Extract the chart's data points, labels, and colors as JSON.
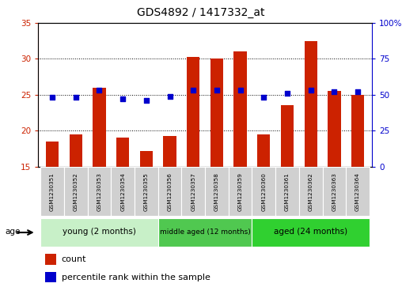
{
  "title": "GDS4892 / 1417332_at",
  "samples": [
    "GSM1230351",
    "GSM1230352",
    "GSM1230353",
    "GSM1230354",
    "GSM1230355",
    "GSM1230356",
    "GSM1230357",
    "GSM1230358",
    "GSM1230359",
    "GSM1230360",
    "GSM1230361",
    "GSM1230362",
    "GSM1230363",
    "GSM1230364"
  ],
  "count_values": [
    18.5,
    19.5,
    26.0,
    19.0,
    17.2,
    19.3,
    30.3,
    30.0,
    31.0,
    19.5,
    23.5,
    32.5,
    25.5,
    25.0
  ],
  "percentile_values": [
    48,
    48,
    53,
    47,
    46,
    49,
    53,
    53,
    53,
    48,
    51,
    53,
    52,
    52
  ],
  "count_base": 15,
  "ylim_left": [
    15,
    35
  ],
  "ylim_right": [
    0,
    100
  ],
  "yticks_left": [
    15,
    20,
    25,
    30,
    35
  ],
  "yticks_right": [
    0,
    25,
    50,
    75,
    100
  ],
  "ytick_labels_right": [
    "0",
    "25",
    "50",
    "75",
    "100%"
  ],
  "groups": [
    {
      "label": "young (2 months)",
      "start": 0,
      "end": 5,
      "color": "#c8f0c8"
    },
    {
      "label": "middle aged (12 months)",
      "start": 5,
      "end": 9,
      "color": "#50c850"
    },
    {
      "label": "aged (24 months)",
      "start": 9,
      "end": 14,
      "color": "#30d030"
    }
  ],
  "bar_color": "#cc2200",
  "dot_color": "#0000cc",
  "left_axis_color": "#cc2200",
  "right_axis_color": "#0000cc",
  "background_color": "#ffffff",
  "sample_box_color": "#d0d0d0",
  "bar_width": 0.55,
  "gridline_color": "#000000",
  "gridline_style": "dotted",
  "age_label": "age",
  "legend_count_label": "count",
  "legend_pct_label": "percentile rank within the sample"
}
